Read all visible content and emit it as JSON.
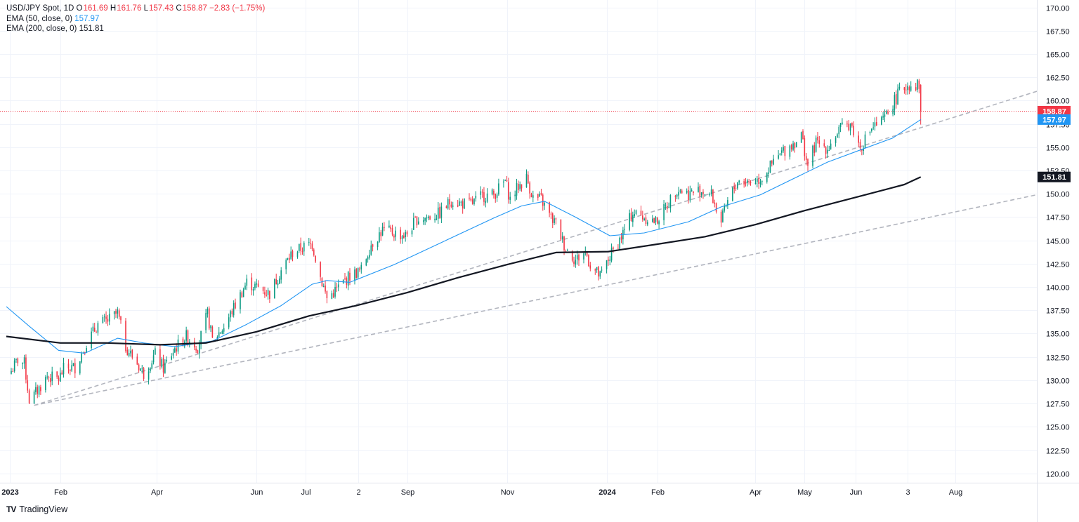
{
  "legend": {
    "symbol": "USD/JPY Spot, 1D",
    "open_label": "O",
    "open": "161.69",
    "high_label": "H",
    "high": "161.76",
    "low_label": "L",
    "low": "157.43",
    "close_label": "C",
    "close": "158.87",
    "change": "−2.83 (−1.75%)",
    "ema50_label": "EMA (50, close, 0)",
    "ema50_value": "157.97",
    "ema200_label": "EMA (200, close, 0)",
    "ema200_value": "151.81"
  },
  "brand": {
    "logo": "TV",
    "name": "TradingView"
  },
  "chart_data": {
    "type": "candlestick",
    "title": "USD/JPY Spot, 1D",
    "ylim": [
      119,
      170.8
    ],
    "y_ticks": [
      120,
      122.5,
      125,
      127.5,
      130,
      132.5,
      135,
      137.5,
      140,
      142.5,
      145,
      147.5,
      150,
      152.5,
      155,
      157.5,
      160,
      162.5,
      165,
      167.5,
      170
    ],
    "x_ticks": [
      {
        "label": "2023",
        "date": "2023-01-01"
      },
      {
        "label": "Feb",
        "date": "2023-02-01"
      },
      {
        "label": "Apr",
        "date": "2023-04-01"
      },
      {
        "label": "Jun",
        "date": "2023-06-01"
      },
      {
        "label": "Jul",
        "date": "2023-07-01"
      },
      {
        "label": "2",
        "date": "2023-08-02"
      },
      {
        "label": "Sep",
        "date": "2023-09-01"
      },
      {
        "label": "Nov",
        "date": "2023-11-01"
      },
      {
        "label": "2024",
        "date": "2024-01-01"
      },
      {
        "label": "Feb",
        "date": "2024-02-01"
      },
      {
        "label": "Apr",
        "date": "2024-04-01"
      },
      {
        "label": "May",
        "date": "2024-05-01"
      },
      {
        "label": "Jun",
        "date": "2024-06-01"
      },
      {
        "label": "3",
        "date": "2024-07-03"
      },
      {
        "label": "Aug",
        "date": "2024-08-01"
      }
    ],
    "xlim": [
      "2022-12-30",
      "2024-09-20"
    ],
    "close_path": [
      {
        "date": "2023-01-02",
        "close": 131.0
      },
      {
        "date": "2023-01-06",
        "close": 132.2
      },
      {
        "date": "2023-01-10",
        "close": 131.8
      },
      {
        "date": "2023-01-13",
        "close": 127.9
      },
      {
        "date": "2023-01-16",
        "close": 128.4
      },
      {
        "date": "2023-01-18",
        "close": 128.9
      },
      {
        "date": "2023-01-24",
        "close": 130.4
      },
      {
        "date": "2023-01-31",
        "close": 130.1
      },
      {
        "date": "2023-02-03",
        "close": 131.2
      },
      {
        "date": "2023-02-10",
        "close": 131.4
      },
      {
        "date": "2023-02-17",
        "close": 134.0
      },
      {
        "date": "2023-02-24",
        "close": 136.0
      },
      {
        "date": "2023-03-02",
        "close": 136.4
      },
      {
        "date": "2023-03-08",
        "close": 137.2
      },
      {
        "date": "2023-03-13",
        "close": 133.6
      },
      {
        "date": "2023-03-20",
        "close": 131.8
      },
      {
        "date": "2023-03-24",
        "close": 130.7
      },
      {
        "date": "2023-03-31",
        "close": 132.8
      },
      {
        "date": "2023-04-05",
        "close": 131.3
      },
      {
        "date": "2023-04-12",
        "close": 133.4
      },
      {
        "date": "2023-04-19",
        "close": 134.7
      },
      {
        "date": "2023-04-26",
        "close": 133.6
      },
      {
        "date": "2023-05-02",
        "close": 137.1
      },
      {
        "date": "2023-05-05",
        "close": 134.3
      },
      {
        "date": "2023-05-12",
        "close": 135.7
      },
      {
        "date": "2023-05-19",
        "close": 138.1
      },
      {
        "date": "2023-05-26",
        "close": 140.5
      },
      {
        "date": "2023-06-02",
        "close": 139.9
      },
      {
        "date": "2023-06-09",
        "close": 139.3
      },
      {
        "date": "2023-06-16",
        "close": 141.8
      },
      {
        "date": "2023-06-23",
        "close": 143.7
      },
      {
        "date": "2023-06-30",
        "close": 144.3
      },
      {
        "date": "2023-07-05",
        "close": 144.6
      },
      {
        "date": "2023-07-10",
        "close": 141.1
      },
      {
        "date": "2023-07-14",
        "close": 138.8
      },
      {
        "date": "2023-07-19",
        "close": 139.6
      },
      {
        "date": "2023-07-25",
        "close": 140.7
      },
      {
        "date": "2023-07-28",
        "close": 141.2
      },
      {
        "date": "2023-08-04",
        "close": 141.8
      },
      {
        "date": "2023-08-10",
        "close": 144.6
      },
      {
        "date": "2023-08-17",
        "close": 146.1
      },
      {
        "date": "2023-08-24",
        "close": 145.8
      },
      {
        "date": "2023-08-31",
        "close": 145.5
      },
      {
        "date": "2023-09-07",
        "close": 147.3
      },
      {
        "date": "2023-09-14",
        "close": 147.5
      },
      {
        "date": "2023-09-21",
        "close": 147.9
      },
      {
        "date": "2023-09-28",
        "close": 149.3
      },
      {
        "date": "2023-10-03",
        "close": 149.0
      },
      {
        "date": "2023-10-10",
        "close": 148.9
      },
      {
        "date": "2023-10-17",
        "close": 149.8
      },
      {
        "date": "2023-10-24",
        "close": 149.9
      },
      {
        "date": "2023-10-31",
        "close": 151.4
      },
      {
        "date": "2023-11-03",
        "close": 149.4
      },
      {
        "date": "2023-11-08",
        "close": 150.8
      },
      {
        "date": "2023-11-13",
        "close": 151.7
      },
      {
        "date": "2023-11-17",
        "close": 149.6
      },
      {
        "date": "2023-11-22",
        "close": 149.4
      },
      {
        "date": "2023-11-28",
        "close": 147.4
      },
      {
        "date": "2023-12-01",
        "close": 146.8
      },
      {
        "date": "2023-12-07",
        "close": 144.1
      },
      {
        "date": "2023-12-13",
        "close": 142.9
      },
      {
        "date": "2023-12-19",
        "close": 143.8
      },
      {
        "date": "2023-12-22",
        "close": 142.4
      },
      {
        "date": "2023-12-28",
        "close": 141.1
      },
      {
        "date": "2024-01-03",
        "close": 143.3
      },
      {
        "date": "2024-01-10",
        "close": 145.4
      },
      {
        "date": "2024-01-17",
        "close": 148.0
      },
      {
        "date": "2024-01-24",
        "close": 147.5
      },
      {
        "date": "2024-01-31",
        "close": 147.0
      },
      {
        "date": "2024-02-06",
        "close": 148.5
      },
      {
        "date": "2024-02-13",
        "close": 150.6
      },
      {
        "date": "2024-02-20",
        "close": 150.0
      },
      {
        "date": "2024-02-27",
        "close": 150.4
      },
      {
        "date": "2024-03-05",
        "close": 149.9
      },
      {
        "date": "2024-03-11",
        "close": 147.0
      },
      {
        "date": "2024-03-15",
        "close": 149.1
      },
      {
        "date": "2024-03-21",
        "close": 151.4
      },
      {
        "date": "2024-03-28",
        "close": 151.3
      },
      {
        "date": "2024-04-04",
        "close": 151.6
      },
      {
        "date": "2024-04-11",
        "close": 153.1
      },
      {
        "date": "2024-04-18",
        "close": 154.6
      },
      {
        "date": "2024-04-24",
        "close": 155.4
      },
      {
        "date": "2024-04-29",
        "close": 156.3
      },
      {
        "date": "2024-05-03",
        "close": 153.0
      },
      {
        "date": "2024-05-08",
        "close": 155.5
      },
      {
        "date": "2024-05-15",
        "close": 154.9
      },
      {
        "date": "2024-05-22",
        "close": 156.8
      },
      {
        "date": "2024-05-29",
        "close": 157.6
      },
      {
        "date": "2024-06-04",
        "close": 154.9
      },
      {
        "date": "2024-06-11",
        "close": 157.1
      },
      {
        "date": "2024-06-18",
        "close": 157.8
      },
      {
        "date": "2024-06-24",
        "close": 159.7
      },
      {
        "date": "2024-06-28",
        "close": 160.9
      },
      {
        "date": "2024-07-03",
        "close": 161.7
      },
      {
        "date": "2024-07-10",
        "close": 161.7
      },
      {
        "date": "2024-07-11",
        "close": 158.87
      }
    ],
    "series": [
      {
        "name": "EMA (50, close, 0)",
        "color": "#2196f3",
        "points": [
          {
            "date": "2022-12-30",
            "value": 137.9
          },
          {
            "date": "2023-01-13",
            "value": 135.8
          },
          {
            "date": "2023-01-31",
            "value": 133.2
          },
          {
            "date": "2023-02-16",
            "value": 132.9
          },
          {
            "date": "2023-03-08",
            "value": 134.5
          },
          {
            "date": "2023-03-24",
            "value": 134.0
          },
          {
            "date": "2023-04-12",
            "value": 133.6
          },
          {
            "date": "2023-05-05",
            "value": 134.2
          },
          {
            "date": "2023-05-26",
            "value": 136.0
          },
          {
            "date": "2023-06-16",
            "value": 138.0
          },
          {
            "date": "2023-07-05",
            "value": 140.3
          },
          {
            "date": "2023-07-14",
            "value": 140.7
          },
          {
            "date": "2023-07-28",
            "value": 140.5
          },
          {
            "date": "2023-08-24",
            "value": 142.4
          },
          {
            "date": "2023-09-21",
            "value": 144.7
          },
          {
            "date": "2023-10-24",
            "value": 147.4
          },
          {
            "date": "2023-11-10",
            "value": 148.7
          },
          {
            "date": "2023-11-24",
            "value": 149.2
          },
          {
            "date": "2023-12-13",
            "value": 147.5
          },
          {
            "date": "2024-01-03",
            "value": 145.5
          },
          {
            "date": "2024-01-24",
            "value": 145.8
          },
          {
            "date": "2024-02-20",
            "value": 147.0
          },
          {
            "date": "2024-03-11",
            "value": 148.6
          },
          {
            "date": "2024-04-04",
            "value": 149.9
          },
          {
            "date": "2024-04-25",
            "value": 151.7
          },
          {
            "date": "2024-05-15",
            "value": 153.4
          },
          {
            "date": "2024-06-04",
            "value": 154.7
          },
          {
            "date": "2024-06-24",
            "value": 156.0
          },
          {
            "date": "2024-07-11",
            "value": 157.97
          }
        ]
      },
      {
        "name": "EMA (200, close, 0)",
        "color": "#131722",
        "points": [
          {
            "date": "2022-12-30",
            "value": 134.7
          },
          {
            "date": "2023-02-01",
            "value": 134.0
          },
          {
            "date": "2023-03-01",
            "value": 134.0
          },
          {
            "date": "2023-04-03",
            "value": 133.8
          },
          {
            "date": "2023-05-01",
            "value": 134.0
          },
          {
            "date": "2023-06-01",
            "value": 135.2
          },
          {
            "date": "2023-07-03",
            "value": 136.9
          },
          {
            "date": "2023-08-01",
            "value": 138.0
          },
          {
            "date": "2023-09-01",
            "value": 139.4
          },
          {
            "date": "2023-10-02",
            "value": 141.0
          },
          {
            "date": "2023-11-01",
            "value": 142.4
          },
          {
            "date": "2023-12-01",
            "value": 143.7
          },
          {
            "date": "2024-01-02",
            "value": 143.8
          },
          {
            "date": "2024-02-01",
            "value": 144.6
          },
          {
            "date": "2024-03-01",
            "value": 145.4
          },
          {
            "date": "2024-04-01",
            "value": 146.7
          },
          {
            "date": "2024-05-01",
            "value": 148.2
          },
          {
            "date": "2024-06-03",
            "value": 149.7
          },
          {
            "date": "2024-07-01",
            "value": 151.0
          },
          {
            "date": "2024-07-11",
            "value": 151.81
          }
        ]
      }
    ],
    "trendlines": [
      {
        "points": [
          {
            "date": "2023-01-16",
            "value": 127.3
          },
          {
            "date": "2024-09-20",
            "value": 161.0
          }
        ]
      },
      {
        "points": [
          {
            "date": "2023-01-16",
            "value": 127.3
          },
          {
            "date": "2024-09-20",
            "value": 149.9
          }
        ]
      }
    ],
    "last_price": {
      "value": 158.87,
      "label": "158.87",
      "color": "#f23645"
    },
    "axis_labels": [
      {
        "value": 158.87,
        "label": "158.87",
        "color": "#f23645"
      },
      {
        "value": 157.97,
        "label": "157.97",
        "color": "#2196f3"
      },
      {
        "value": 151.81,
        "label": "151.81",
        "color": "#131722"
      }
    ],
    "colors": {
      "up": "#089981",
      "down": "#f23645",
      "grid": "#f0f3fa",
      "trend": "#b2b5be"
    }
  }
}
